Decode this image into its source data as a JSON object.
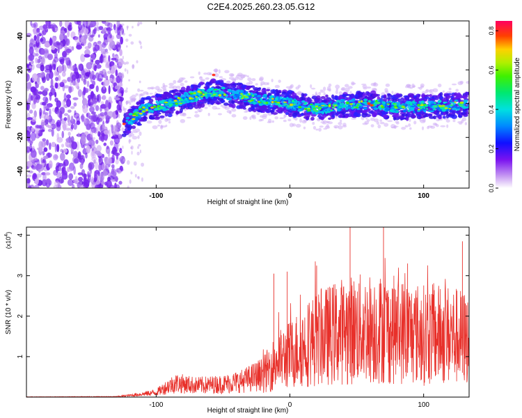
{
  "title": "C2E4.2025.260.23.05.G12",
  "chart_data": [
    {
      "type": "heatmap",
      "panel": "top",
      "title": "C2E4.2025.260.23.05.G12",
      "xlabel": "Height of straight line (km)",
      "ylabel": "Frequency (Hz)",
      "xlim": [
        -197,
        134
      ],
      "ylim": [
        -50,
        49
      ],
      "xticks": [
        -100,
        0,
        100
      ],
      "yticks": [
        -40,
        -20,
        0,
        20,
        40
      ],
      "xtick_labels": [
        "-100",
        "0",
        "100"
      ],
      "ytick_labels": [
        "-40",
        "-20",
        "0",
        "20",
        "40"
      ],
      "signal_trace": {
        "description_points_height_km": [
          -124,
          -110,
          -90,
          -70,
          -55,
          -40,
          -20,
          0,
          20,
          40,
          60,
          80,
          100,
          120,
          134
        ],
        "center_frequency_hz": [
          -12,
          -4,
          0,
          5,
          7,
          5,
          2,
          0,
          -3,
          -1,
          0,
          -2,
          -2,
          -1,
          0
        ]
      },
      "colorbar": {
        "label": "Normalized spectral amplitude",
        "range": [
          0.0,
          0.85
        ],
        "ticks": [
          0.0,
          0.2,
          0.4,
          0.6,
          0.8
        ],
        "tick_labels": [
          "0.0",
          "0.2",
          "0.4",
          "0.6",
          "0.8"
        ]
      }
    },
    {
      "type": "line",
      "panel": "bottom",
      "xlabel": "Height of straight line (km)",
      "ylabel": "SNR (10 * v/v)",
      "multiplier_label": "(x10",
      "multiplier_exp": "4",
      "xlim": [
        -197,
        134
      ],
      "ylim": [
        0,
        4.2
      ],
      "xticks": [
        -100,
        0,
        100
      ],
      "yticks": [
        1,
        2,
        3,
        4
      ],
      "xtick_labels": [
        "-100",
        "0",
        "100"
      ],
      "ytick_labels": [
        "1",
        "2",
        "3",
        "4"
      ],
      "color": "#e8302a",
      "envelope": {
        "x": [
          -197,
          -130,
          -115,
          -100,
          -90,
          -85,
          -70,
          -50,
          -35,
          -20,
          -10,
          0,
          10,
          20,
          40,
          60,
          80,
          100,
          120,
          134
        ],
        "y": [
          0.01,
          0.02,
          0.1,
          0.2,
          0.5,
          0.6,
          0.5,
          0.55,
          0.7,
          1.0,
          1.6,
          1.9,
          2.3,
          2.6,
          3.0,
          3.1,
          3.0,
          2.8,
          2.8,
          2.6
        ]
      }
    }
  ]
}
